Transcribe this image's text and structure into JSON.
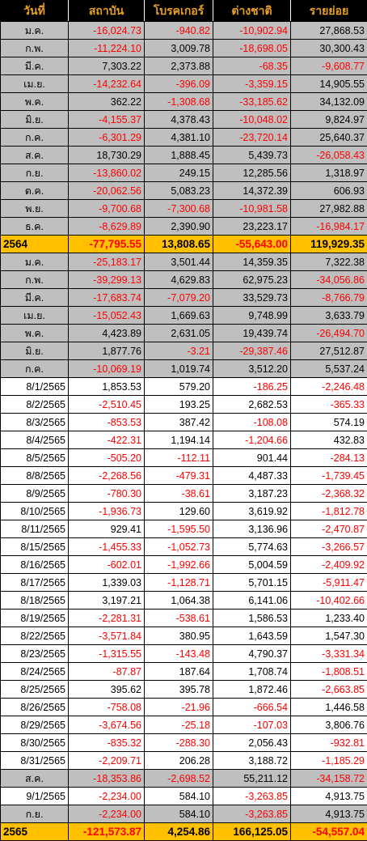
{
  "columns": [
    "วันที่",
    "สถาบัน",
    "โบรคเกอร์",
    "ต่างชาติ",
    "รายย่อย"
  ],
  "rows": [
    {
      "kind": "gray",
      "label": "ม.ค.",
      "values": [
        "-16,024.73",
        "-940.82",
        "-10,902.94",
        "27,868.53"
      ]
    },
    {
      "kind": "gray",
      "label": "ก.พ.",
      "values": [
        "-11,224.10",
        "3,009.78",
        "-18,698.05",
        "30,300.43"
      ]
    },
    {
      "kind": "gray",
      "label": "มี.ค.",
      "values": [
        "7,303.22",
        "2,373.88",
        "-68.35",
        "-9,608.77"
      ]
    },
    {
      "kind": "gray",
      "label": "เม.ย.",
      "values": [
        "-14,232.64",
        "-396.09",
        "-3,359.15",
        "14,905.55"
      ]
    },
    {
      "kind": "gray",
      "label": "พ.ค.",
      "values": [
        "362.22",
        "-1,308.68",
        "-33,185.62",
        "34,132.09"
      ]
    },
    {
      "kind": "gray",
      "label": "มิ.ย.",
      "values": [
        "-4,155.37",
        "4,378.43",
        "-10,048.02",
        "9,824.97"
      ]
    },
    {
      "kind": "gray",
      "label": "ก.ค.",
      "values": [
        "-6,301.29",
        "4,381.10",
        "-23,720.14",
        "25,640.37"
      ]
    },
    {
      "kind": "gray",
      "label": "ส.ค.",
      "values": [
        "18,730.29",
        "1,888.45",
        "5,439.73",
        "-26,058.43"
      ]
    },
    {
      "kind": "gray",
      "label": "ก.ย.",
      "values": [
        "-13,860.02",
        "249.15",
        "12,285.56",
        "1,318.97"
      ]
    },
    {
      "kind": "gray",
      "label": "ต.ค.",
      "values": [
        "-20,062.56",
        "5,083.23",
        "14,372.39",
        "606.93"
      ]
    },
    {
      "kind": "gray",
      "label": "พ.ย.",
      "values": [
        "-9,700.68",
        "-7,300.68",
        "-10,981.58",
        "27,982.88"
      ]
    },
    {
      "kind": "gray",
      "label": "ธ.ค.",
      "values": [
        "-8,629.89",
        "2,390.90",
        "23,223.17",
        "-16,984.17"
      ]
    },
    {
      "kind": "total",
      "label": "2564",
      "values": [
        "-77,795.55",
        "13,808.65",
        "-55,643.00",
        "119,929.35"
      ]
    },
    {
      "kind": "gray",
      "label": "ม.ค.",
      "values": [
        "-25,183.17",
        "3,501.44",
        "14,359.35",
        "7,322.38"
      ]
    },
    {
      "kind": "gray",
      "label": "ก.พ.",
      "values": [
        "-39,299.13",
        "4,629.83",
        "62,975.23",
        "-34,056.86"
      ]
    },
    {
      "kind": "gray",
      "label": "มี.ค.",
      "values": [
        "-17,683.74",
        "-7,079.20",
        "33,529.73",
        "-8,766.79"
      ]
    },
    {
      "kind": "gray",
      "label": "เม.ย.",
      "values": [
        "-15,052.43",
        "1,669.63",
        "9,748.99",
        "3,633.79"
      ]
    },
    {
      "kind": "gray",
      "label": "พ.ค.",
      "values": [
        "4,423.89",
        "2,631.05",
        "19,439.74",
        "-26,494.70"
      ]
    },
    {
      "kind": "gray",
      "label": "มิ.ย.",
      "values": [
        "1,877.76",
        "-3.21",
        "-29,387.46",
        "27,512.87"
      ]
    },
    {
      "kind": "gray",
      "label": "ก.ค.",
      "values": [
        "-10,069.19",
        "1,019.74",
        "3,512.20",
        "5,537.24"
      ]
    },
    {
      "kind": "white",
      "label": "8/1/2565",
      "values": [
        "1,853.53",
        "579.20",
        "-186.25",
        "-2,246.48"
      ]
    },
    {
      "kind": "white",
      "label": "8/2/2565",
      "values": [
        "-2,510.45",
        "193.25",
        "2,682.53",
        "-365.33"
      ]
    },
    {
      "kind": "white",
      "label": "8/3/2565",
      "values": [
        "-853.53",
        "387.42",
        "-108.08",
        "574.19"
      ]
    },
    {
      "kind": "white",
      "label": "8/4/2565",
      "values": [
        "-422.31",
        "1,194.14",
        "-1,204.66",
        "432.83"
      ]
    },
    {
      "kind": "white",
      "label": "8/5/2565",
      "values": [
        "-505.20",
        "-112.11",
        "901.44",
        "-284.13"
      ]
    },
    {
      "kind": "white",
      "label": "8/8/2565",
      "values": [
        "-2,268.56",
        "-479.31",
        "4,487.33",
        "-1,739.45"
      ]
    },
    {
      "kind": "white",
      "label": "8/9/2565",
      "values": [
        "-780.30",
        "-38.61",
        "3,187.23",
        "-2,368.32"
      ]
    },
    {
      "kind": "white",
      "label": "8/10/2565",
      "values": [
        "-1,936.73",
        "129.60",
        "3,619.92",
        "-1,812.78"
      ]
    },
    {
      "kind": "white",
      "label": "8/11/2565",
      "values": [
        "929.41",
        "-1,595.50",
        "3,136.96",
        "-2,470.87"
      ]
    },
    {
      "kind": "white",
      "label": "8/15/2565",
      "values": [
        "-1,455.33",
        "-1,052.73",
        "5,774.63",
        "-3,266.57"
      ]
    },
    {
      "kind": "white",
      "label": "8/16/2565",
      "values": [
        "-602.01",
        "-1,992.66",
        "5,004.59",
        "-2,409.92"
      ]
    },
    {
      "kind": "white",
      "label": "8/17/2565",
      "values": [
        "1,339.03",
        "-1,128.71",
        "5,701.15",
        "-5,911.47"
      ]
    },
    {
      "kind": "white",
      "label": "8/18/2565",
      "values": [
        "3,197.21",
        "1,064.38",
        "6,141.06",
        "-10,402.66"
      ]
    },
    {
      "kind": "white",
      "label": "8/19/2565",
      "values": [
        "-2,281.31",
        "-538.61",
        "1,586.53",
        "1,233.40"
      ]
    },
    {
      "kind": "white",
      "label": "8/22/2565",
      "values": [
        "-3,571.84",
        "380.95",
        "1,643.59",
        "1,547.30"
      ]
    },
    {
      "kind": "white",
      "label": "8/23/2565",
      "values": [
        "-1,315.55",
        "-143.48",
        "4,790.37",
        "-3,331.34"
      ]
    },
    {
      "kind": "white",
      "label": "8/24/2565",
      "values": [
        "-87.87",
        "187.64",
        "1,708.74",
        "-1,808.51"
      ]
    },
    {
      "kind": "white",
      "label": "8/25/2565",
      "values": [
        "395.62",
        "395.78",
        "1,872.46",
        "-2,663.85"
      ]
    },
    {
      "kind": "white",
      "label": "8/26/2565",
      "values": [
        "-758.08",
        "-21.96",
        "-666.54",
        "1,446.58"
      ]
    },
    {
      "kind": "white",
      "label": "8/29/2565",
      "values": [
        "-3,674.56",
        "-25.18",
        "-107.03",
        "3,806.76"
      ]
    },
    {
      "kind": "white",
      "label": "8/30/2565",
      "values": [
        "-835.32",
        "-288.30",
        "2,056.43",
        "-932.81"
      ]
    },
    {
      "kind": "white",
      "label": "8/31/2565",
      "values": [
        "-2,209.71",
        "206.28",
        "3,188.72",
        "-1,185.29"
      ]
    },
    {
      "kind": "gray",
      "label": "ส.ค.",
      "values": [
        "-18,353.86",
        "-2,698.52",
        "55,211.12",
        "-34,158.72"
      ]
    },
    {
      "kind": "white",
      "label": "9/1/2565",
      "values": [
        "-2,234.00",
        "584.10",
        "-3,263.85",
        "4,913.75"
      ]
    },
    {
      "kind": "gray",
      "label": "ก.ย.",
      "values": [
        "-2,234.00",
        "584.10",
        "-3,263.85",
        "4,913.75"
      ]
    },
    {
      "kind": "total",
      "label": "2565",
      "values": [
        "-121,573.87",
        "4,254.86",
        "166,125.05",
        "-54,557.04"
      ]
    }
  ],
  "colors": {
    "header_bg": "#000000",
    "header_text": "#e8a020",
    "month_row_bg": "#bfbfbf",
    "total_row_bg": "#ffc000",
    "negative_text": "#ff0000",
    "positive_text": "#000000"
  }
}
